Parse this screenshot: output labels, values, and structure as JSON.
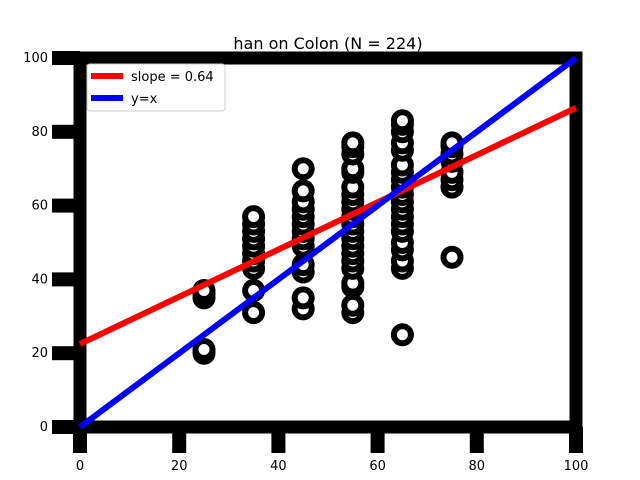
{
  "chart_data": {
    "type": "scatter",
    "title": "han on Colon (N = 224)",
    "xlabel": "",
    "ylabel": "",
    "xlim": [
      0,
      100
    ],
    "ylim": [
      0,
      100
    ],
    "xticks": [
      0,
      20,
      40,
      60,
      80,
      100
    ],
    "yticks": [
      0,
      20,
      40,
      60,
      80,
      100
    ],
    "grid": false,
    "legend_position": "top-left",
    "colors": {
      "points": "#000000",
      "fit_line": "#ff0000",
      "identity_line": "#0000ff"
    },
    "series": [
      {
        "kind": "scatter",
        "points": [
          [
            25,
            20
          ],
          [
            25,
            21
          ],
          [
            25,
            35
          ],
          [
            25,
            36
          ],
          [
            25,
            37
          ],
          [
            35,
            31
          ],
          [
            35,
            37
          ],
          [
            35,
            43
          ],
          [
            35,
            45
          ],
          [
            35,
            47
          ],
          [
            35,
            49
          ],
          [
            35,
            51
          ],
          [
            35,
            53
          ],
          [
            35,
            55
          ],
          [
            35,
            57
          ],
          [
            45,
            32
          ],
          [
            45,
            35
          ],
          [
            45,
            42
          ],
          [
            45,
            44
          ],
          [
            45,
            49
          ],
          [
            45,
            51
          ],
          [
            45,
            53
          ],
          [
            45,
            55
          ],
          [
            45,
            57
          ],
          [
            45,
            59
          ],
          [
            45,
            61
          ],
          [
            45,
            64
          ],
          [
            45,
            70
          ],
          [
            55,
            31
          ],
          [
            55,
            33
          ],
          [
            55,
            38
          ],
          [
            55,
            39
          ],
          [
            55,
            43
          ],
          [
            55,
            45
          ],
          [
            55,
            47
          ],
          [
            55,
            49
          ],
          [
            55,
            51
          ],
          [
            55,
            53
          ],
          [
            55,
            55
          ],
          [
            55,
            57
          ],
          [
            55,
            59
          ],
          [
            55,
            61
          ],
          [
            55,
            63
          ],
          [
            55,
            65
          ],
          [
            55,
            69
          ],
          [
            55,
            70
          ],
          [
            55,
            74
          ],
          [
            55,
            76
          ],
          [
            55,
            77
          ],
          [
            65,
            25
          ],
          [
            65,
            43
          ],
          [
            65,
            45
          ],
          [
            65,
            48
          ],
          [
            65,
            50
          ],
          [
            65,
            53
          ],
          [
            65,
            55
          ],
          [
            65,
            57
          ],
          [
            65,
            59
          ],
          [
            65,
            61
          ],
          [
            65,
            63
          ],
          [
            65,
            65
          ],
          [
            65,
            67
          ],
          [
            65,
            69
          ],
          [
            65,
            71
          ],
          [
            65,
            75
          ],
          [
            65,
            77
          ],
          [
            65,
            80
          ],
          [
            65,
            82
          ],
          [
            65,
            83
          ],
          [
            75,
            46
          ],
          [
            75,
            65
          ],
          [
            75,
            67
          ],
          [
            75,
            69
          ],
          [
            75,
            72
          ],
          [
            75,
            74
          ],
          [
            75,
            76
          ],
          [
            75,
            77
          ]
        ]
      },
      {
        "kind": "line",
        "name": "slope = 0.64",
        "slope": 0.64,
        "intercept": 22.5
      },
      {
        "kind": "line",
        "name": "y=x",
        "slope": 1,
        "intercept": 0
      }
    ]
  }
}
